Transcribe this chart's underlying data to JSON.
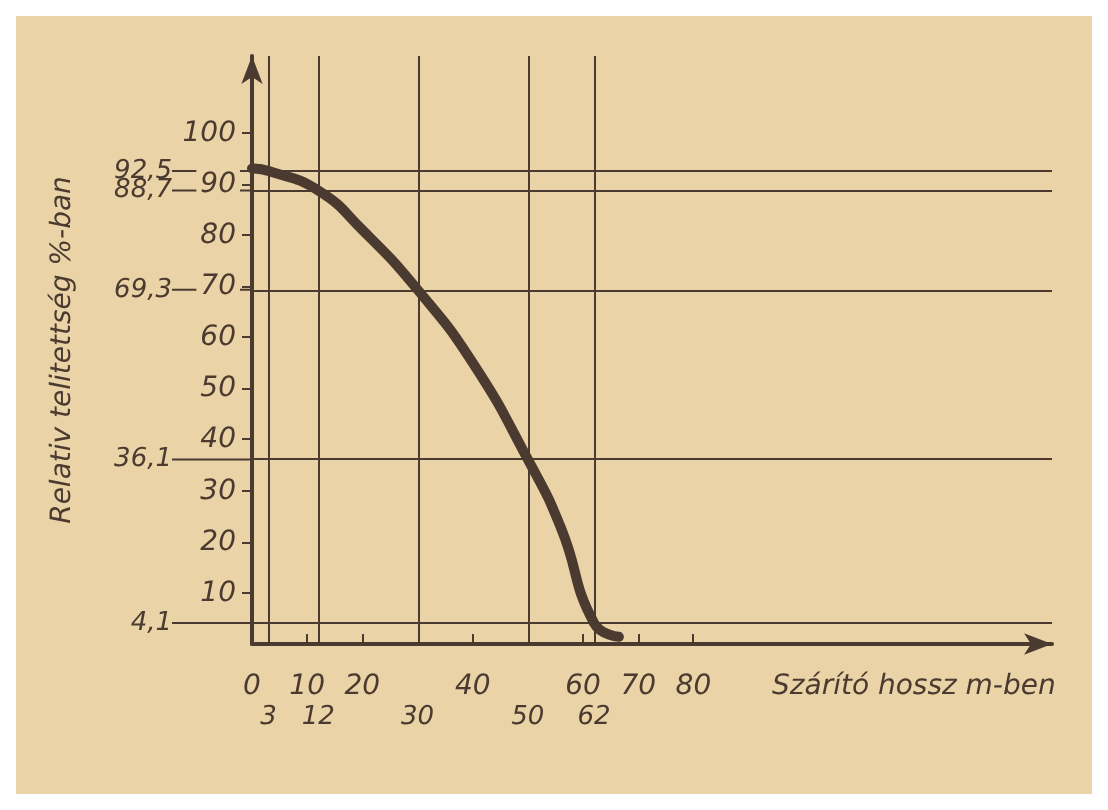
{
  "chart_data": {
    "type": "line",
    "xlabel": "Szárító hossz m-ben",
    "ylabel": "Relativ telitettség %-ban",
    "x": [
      0,
      3,
      12,
      20,
      30,
      40,
      50,
      56,
      62,
      66.5
    ],
    "series": [
      {
        "color": "#4a3a30",
        "values": [
          93,
          92.5,
          88.7,
          81,
          69.3,
          55,
          36.1,
          22.7,
          4.1,
          1.4
        ]
      }
    ],
    "xlim": [
      0,
      145
    ],
    "xticks": [
      0,
      10,
      20,
      40,
      60,
      70,
      80
    ],
    "ylim": [
      0,
      115
    ],
    "yticks": [
      10,
      20,
      30,
      40,
      50,
      60,
      70,
      80,
      90,
      100
    ],
    "grid": false,
    "marker": "none",
    "line_style": "solid",
    "ref_lines": [
      {
        "axis": "y",
        "value": 92.5,
        "label": "92,5"
      },
      {
        "axis": "y",
        "value": 88.7,
        "label": "88,7"
      },
      {
        "axis": "y",
        "value": 69.3,
        "label": "69,3"
      },
      {
        "axis": "y",
        "value": 36.1,
        "label": "36,1"
      },
      {
        "axis": "y",
        "value": 4.1,
        "label": "4,1"
      },
      {
        "axis": "x",
        "value": 3,
        "label": "3"
      },
      {
        "axis": "x",
        "value": 12,
        "label": "12"
      },
      {
        "axis": "x",
        "value": 30,
        "label": "30"
      },
      {
        "axis": "x",
        "value": 50,
        "label": "50"
      },
      {
        "axis": "x",
        "value": 62,
        "label": "62"
      }
    ]
  }
}
